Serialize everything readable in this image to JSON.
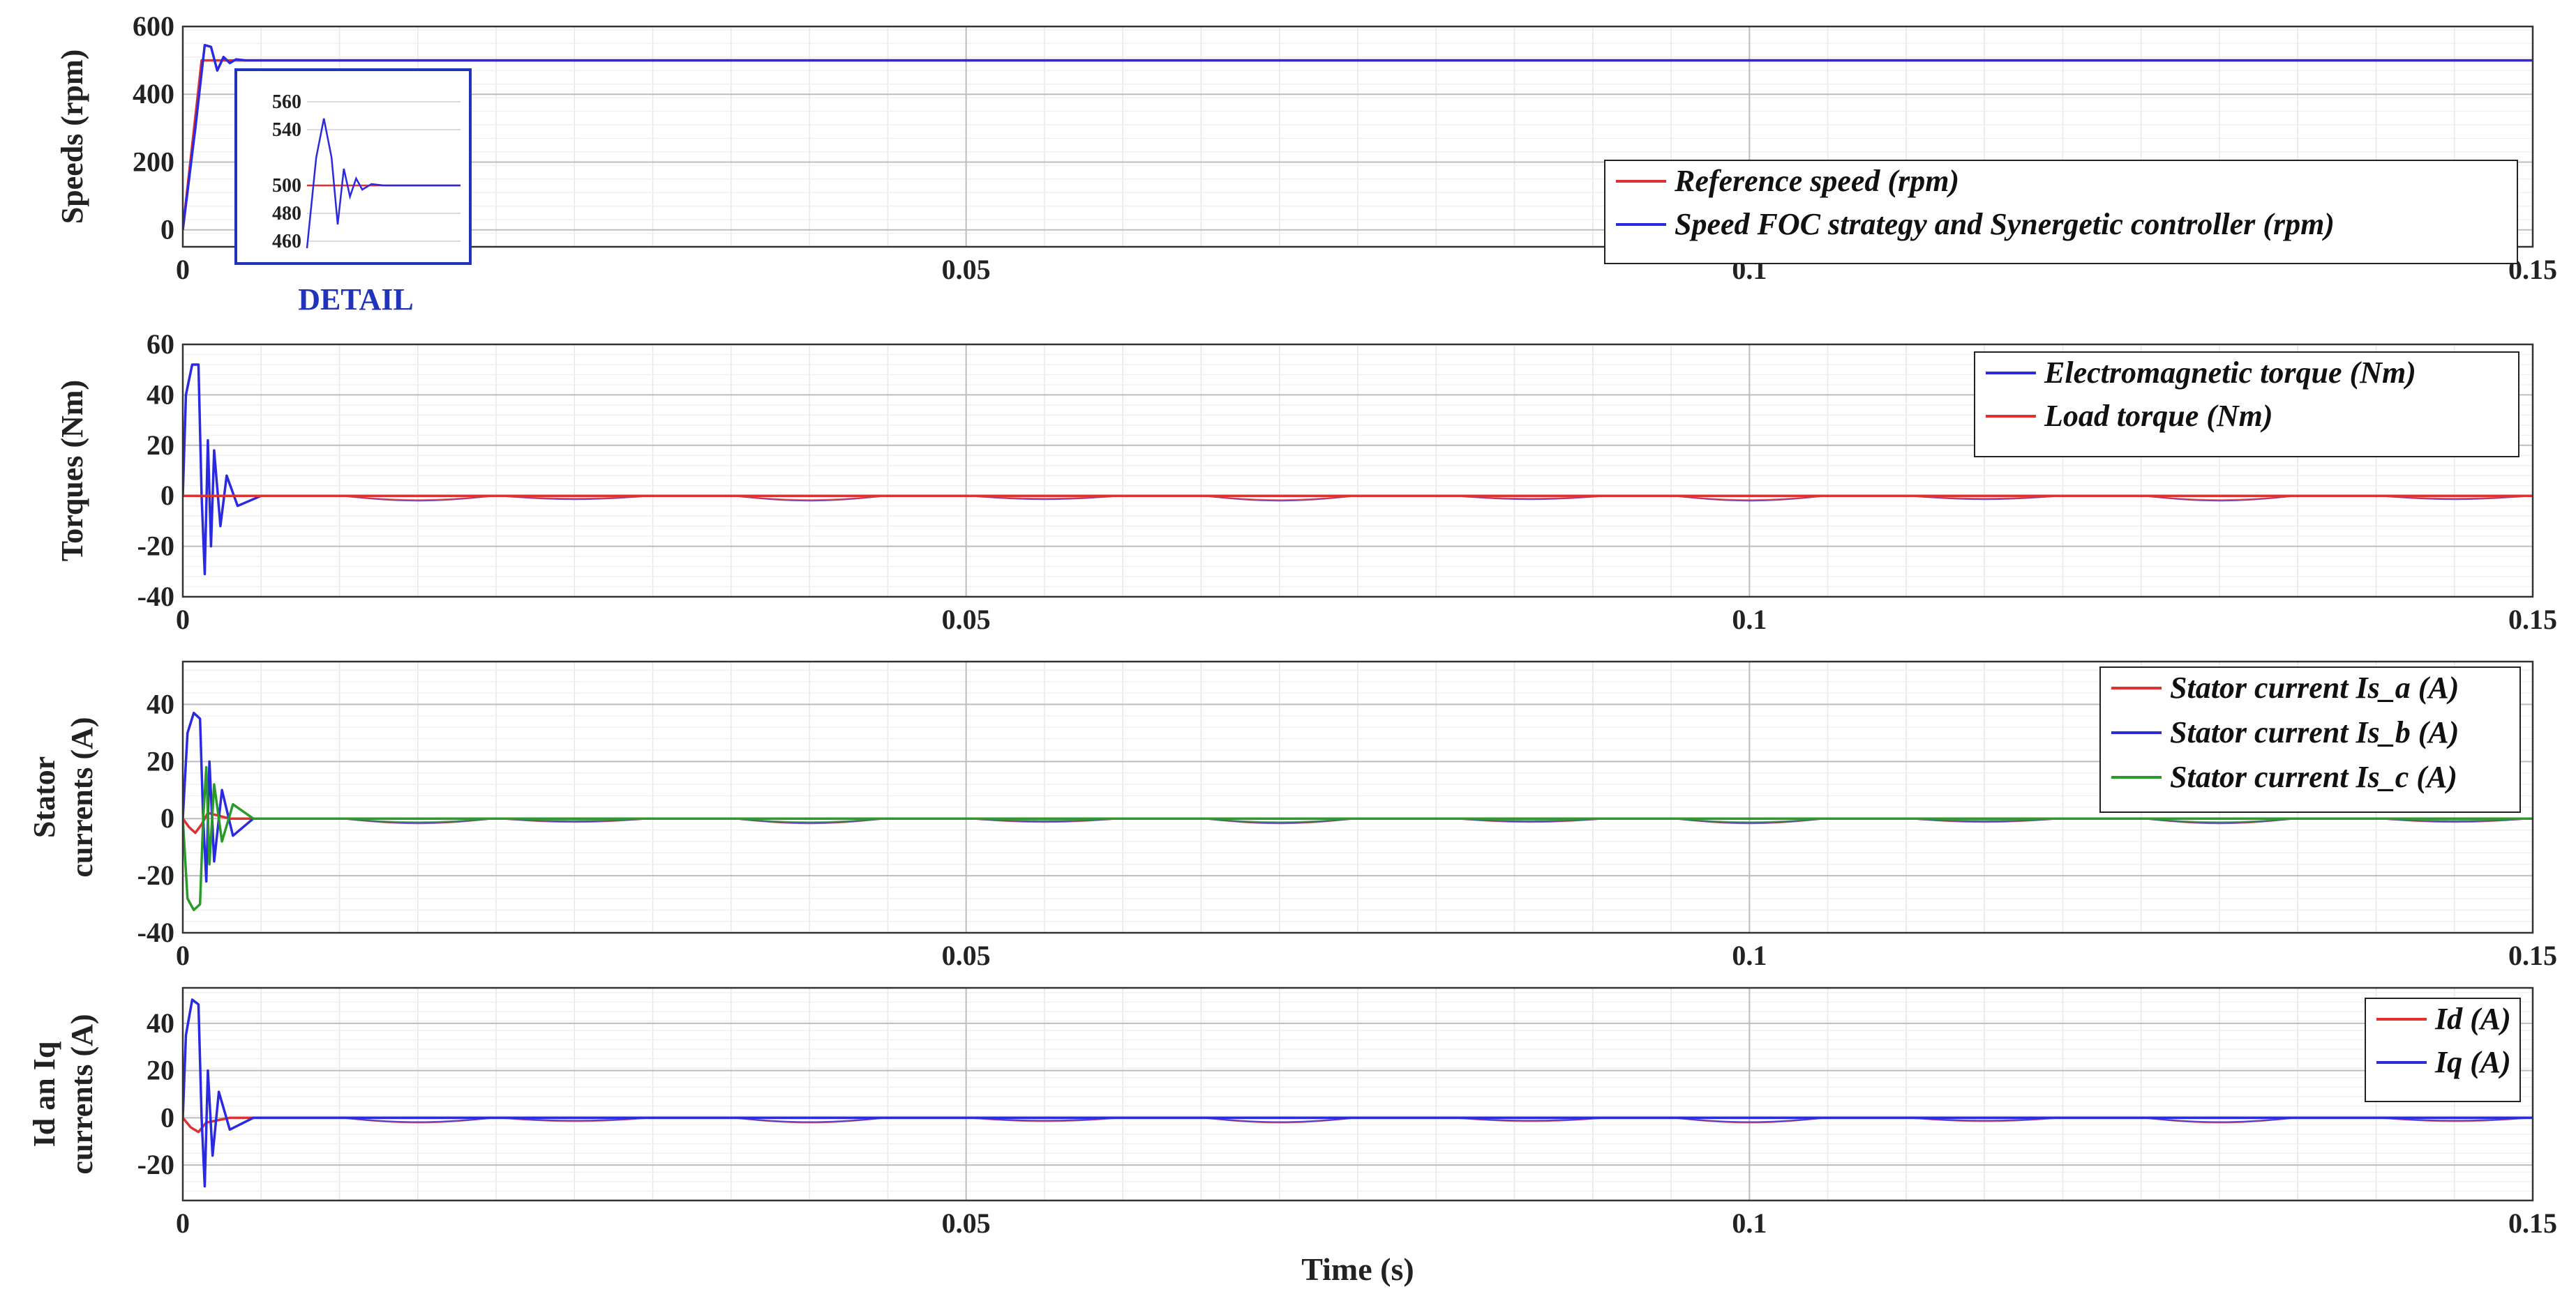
{
  "chart_data": [
    {
      "type": "line",
      "xlabel": "",
      "ylabel": "Speeds (rpm)",
      "xlim": [
        0,
        0.15
      ],
      "ylim": [
        -50,
        600
      ],
      "xticks": [
        "0",
        "0.05",
        "0.1",
        "0.15"
      ],
      "yticks": [
        "0",
        "200",
        "400",
        "600"
      ],
      "grid": true,
      "legend_position": "bottom-right",
      "series": [
        {
          "name": "Reference speed (rpm)",
          "color": "#e03030",
          "x": [
            0,
            0.0012,
            0.15
          ],
          "y": [
            0,
            500,
            500
          ]
        },
        {
          "name": "Speed FOC strategy and Synergetic controller (rpm)",
          "color": "#2a2ae0",
          "x": [
            0,
            0.0008,
            0.0014,
            0.0018,
            0.0022,
            0.0026,
            0.003,
            0.0034,
            0.004,
            0.15
          ],
          "y": [
            0,
            300,
            545,
            540,
            470,
            510,
            492,
            503,
            500,
            500
          ]
        }
      ],
      "inset": {
        "label": "DETAIL",
        "yticks": [
          "460",
          "480",
          "500",
          "540",
          "560"
        ],
        "ylim": [
          455,
          565
        ]
      }
    },
    {
      "type": "line",
      "xlabel": "",
      "ylabel": "Torques (Nm)",
      "xlim": [
        0,
        0.15
      ],
      "ylim": [
        -40,
        60
      ],
      "xticks": [
        "0",
        "0.05",
        "0.1",
        "0.15"
      ],
      "yticks": [
        "-40",
        "-20",
        "0",
        "20",
        "40",
        "60"
      ],
      "grid": true,
      "legend_position": "top-right",
      "series": [
        {
          "name": "Electromagnetic torque (Nm)",
          "color": "#2a2ae0",
          "x": [
            0,
            0.0002,
            0.0006,
            0.001,
            0.0012,
            0.0014,
            0.0016,
            0.0018,
            0.002,
            0.0024,
            0.0028,
            0.0035,
            0.005,
            0.15
          ],
          "y": [
            0,
            40,
            52,
            52,
            0,
            -31,
            22,
            -20,
            18,
            -12,
            8,
            -4,
            0,
            0
          ]
        },
        {
          "name": "Load torque (Nm)",
          "color": "#e03030",
          "x": [
            0,
            0.15
          ],
          "y": [
            0,
            0
          ]
        }
      ]
    },
    {
      "type": "line",
      "xlabel": "",
      "ylabel": "Stator currents (A)",
      "xlim": [
        0,
        0.15
      ],
      "ylim": [
        -40,
        55
      ],
      "xticks": [
        "0",
        "0.05",
        "0.1",
        "0.15"
      ],
      "yticks": [
        "-40",
        "-20",
        "0",
        "20",
        "40"
      ],
      "grid": true,
      "legend_position": "top-right",
      "series": [
        {
          "name": "Stator current Is_a (A)",
          "color": "#e03030",
          "x": [
            0,
            0.0004,
            0.0008,
            0.0012,
            0.0016,
            0.003,
            0.15
          ],
          "y": [
            0,
            -3,
            -5,
            -2,
            2,
            0,
            0
          ]
        },
        {
          "name": "Stator current Is_b (A)",
          "color": "#2a2ae0",
          "x": [
            0,
            0.0003,
            0.0007,
            0.0011,
            0.0013,
            0.0015,
            0.0017,
            0.002,
            0.0025,
            0.0032,
            0.0045,
            0.15
          ],
          "y": [
            0,
            30,
            37,
            35,
            0,
            -22,
            20,
            -15,
            10,
            -6,
            0,
            0
          ]
        },
        {
          "name": "Stator current Is_c (A)",
          "color": "#2a9a2a",
          "x": [
            0,
            0.0003,
            0.0007,
            0.0011,
            0.0013,
            0.0015,
            0.0017,
            0.002,
            0.0025,
            0.0032,
            0.0045,
            0.15
          ],
          "y": [
            0,
            -28,
            -32,
            -30,
            0,
            18,
            -16,
            12,
            -8,
            5,
            0,
            0
          ]
        }
      ]
    },
    {
      "type": "line",
      "xlabel": "Time (s)",
      "ylabel": "Id an Iq currents (A)",
      "xlim": [
        0,
        0.15
      ],
      "ylim": [
        -35,
        55
      ],
      "xticks": [
        "0",
        "0.05",
        "0.1",
        "0.15"
      ],
      "yticks": [
        "-20",
        "0",
        "20",
        "40"
      ],
      "grid": true,
      "legend_position": "right",
      "series": [
        {
          "name": "Id (A)",
          "color": "#e03030",
          "x": [
            0,
            0.0005,
            0.001,
            0.0015,
            0.003,
            0.15
          ],
          "y": [
            0,
            -4,
            -6,
            -2,
            0,
            0
          ]
        },
        {
          "name": "Iq (A)",
          "color": "#2a2ae0",
          "x": [
            0,
            0.0002,
            0.0006,
            0.001,
            0.0012,
            0.0014,
            0.0016,
            0.0019,
            0.0023,
            0.003,
            0.0045,
            0.15
          ],
          "y": [
            0,
            35,
            50,
            48,
            0,
            -29,
            20,
            -16,
            11,
            -5,
            0,
            0
          ]
        }
      ]
    }
  ]
}
